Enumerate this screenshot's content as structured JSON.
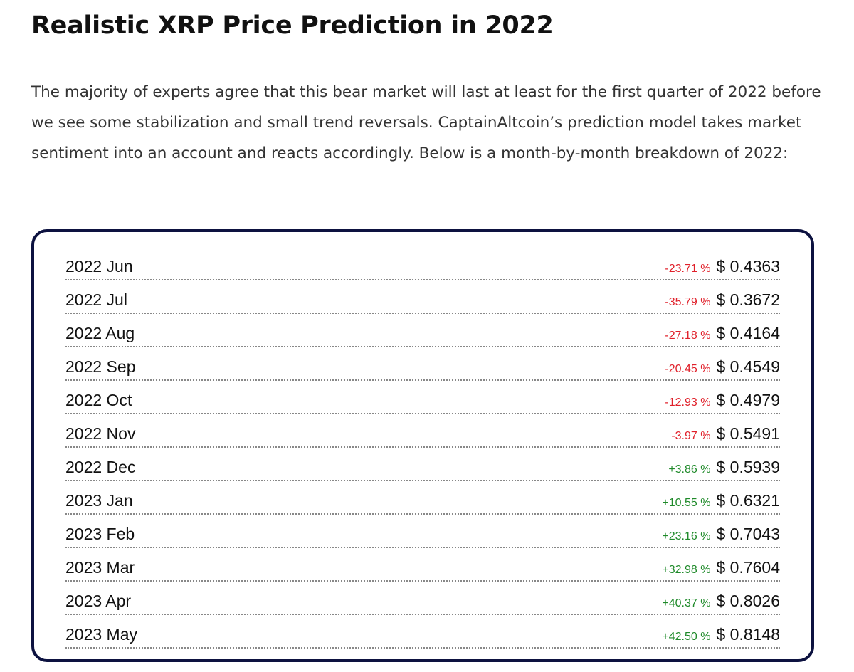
{
  "header": {
    "title": "Realistic XRP Price Prediction in 2022"
  },
  "paragraph": "The majority of experts agree that this bear market will last at least for the first quarter of 2022 before we see some stabilization and small trend reversals. CaptainAltcoin’s prediction model takes market sentiment into an account and reacts accordingly. Below is a month-by-month breakdown of 2022:",
  "table": {
    "rows": [
      {
        "month": "2022 Jun",
        "change": "-23.71 %",
        "price": "$ 0.4363",
        "color": "#e0202a"
      },
      {
        "month": "2022 Jul",
        "change": "-35.79 %",
        "price": "$ 0.3672",
        "color": "#e0202a"
      },
      {
        "month": "2022 Aug",
        "change": "-27.18 %",
        "price": "$ 0.4164",
        "color": "#e0202a"
      },
      {
        "month": "2022 Sep",
        "change": "-20.45 %",
        "price": "$ 0.4549",
        "color": "#e0202a"
      },
      {
        "month": "2022 Oct",
        "change": "-12.93 %",
        "price": "$ 0.4979",
        "color": "#e0202a"
      },
      {
        "month": "2022 Nov",
        "change": "-3.97 %",
        "price": "$ 0.5491",
        "color": "#e0202a"
      },
      {
        "month": "2022 Dec",
        "change": "+3.86 %",
        "price": "$ 0.5939",
        "color": "#1f8a2a"
      },
      {
        "month": "2023 Jan",
        "change": "+10.55 %",
        "price": "$ 0.6321",
        "color": "#1f8a2a"
      },
      {
        "month": "2023 Feb",
        "change": "+23.16 %",
        "price": "$ 0.7043",
        "color": "#1f8a2a"
      },
      {
        "month": "2023 Mar",
        "change": "+32.98 %",
        "price": "$ 0.7604",
        "color": "#1f8a2a"
      },
      {
        "month": "2023 Apr",
        "change": "+40.37 %",
        "price": "$ 0.8026",
        "color": "#1f8a2a"
      },
      {
        "month": "2023 May",
        "change": "+42.50 %",
        "price": "$ 0.8148",
        "color": "#1f8a2a"
      }
    ]
  }
}
